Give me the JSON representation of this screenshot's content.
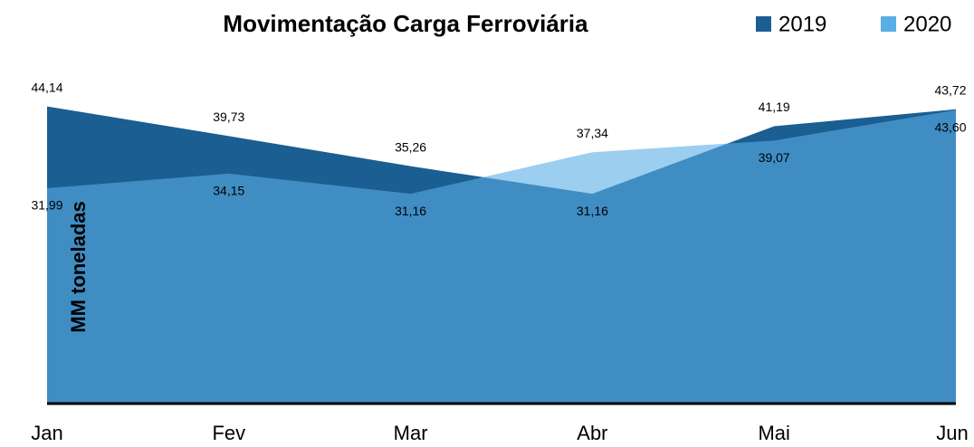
{
  "chart_data": {
    "type": "area",
    "title": "Movimentação Carga Ferroviária",
    "y_label": "MM toneladas",
    "categories": [
      "Jan",
      "Fev",
      "Mar",
      "Abr",
      "Mai",
      "Jun"
    ],
    "ylim": [
      0,
      50
    ],
    "legend": "top-right",
    "series": [
      {
        "name": "2019",
        "color": "#1b5e91",
        "values": [
          44.14,
          39.73,
          35.26,
          31.16,
          41.19,
          43.72
        ],
        "value_labels": [
          "44,14",
          "39,73",
          "35,26",
          "31,16",
          "41,19",
          "43,72"
        ]
      },
      {
        "name": "2020",
        "color": "#5aaee6",
        "values": [
          31.99,
          34.15,
          31.16,
          37.34,
          39.07,
          43.6
        ],
        "value_labels": [
          "31,99",
          "34,15",
          "31,16",
          "37,34",
          "39,07",
          "43,60"
        ]
      }
    ]
  }
}
